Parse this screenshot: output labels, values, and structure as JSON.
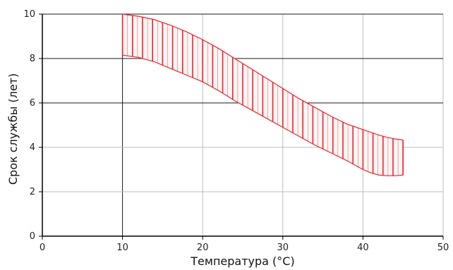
{
  "chart_data": {
    "type": "area",
    "xlabel": "Температура (°C)",
    "ylabel": "Срок службы (лет)",
    "xlim": [
      0,
      50
    ],
    "ylim": [
      0,
      10
    ],
    "x_ticks": [
      "0",
      "10",
      "20",
      "30",
      "40",
      "50"
    ],
    "y_ticks": [
      "0",
      "2",
      "4",
      "6",
      "8",
      "10"
    ],
    "grid": true,
    "band_color": "#e8262c",
    "grid_color_major": "#1a1a1a",
    "grid_color_minor": "#bdbdbd",
    "series": [
      {
        "role": "upper",
        "x": [
          10,
          12,
          14,
          16,
          18,
          20,
          22,
          24,
          26,
          28,
          30,
          32,
          34,
          36,
          38,
          40,
          42,
          43,
          44,
          45
        ],
        "y": [
          10.0,
          9.9,
          9.75,
          9.5,
          9.2,
          8.85,
          8.45,
          8.0,
          7.55,
          7.1,
          6.65,
          6.2,
          5.8,
          5.4,
          5.05,
          4.8,
          4.55,
          4.45,
          4.38,
          4.33
        ]
      },
      {
        "role": "lower",
        "x": [
          10,
          12,
          14,
          16,
          18,
          20,
          22,
          24,
          26,
          28,
          30,
          32,
          34,
          36,
          38,
          40,
          41,
          42,
          43,
          44,
          45
        ],
        "y": [
          8.15,
          8.05,
          7.85,
          7.55,
          7.25,
          6.95,
          6.55,
          6.1,
          5.7,
          5.3,
          4.9,
          4.5,
          4.1,
          3.75,
          3.4,
          3.0,
          2.85,
          2.75,
          2.72,
          2.72,
          2.75
        ]
      }
    ]
  }
}
